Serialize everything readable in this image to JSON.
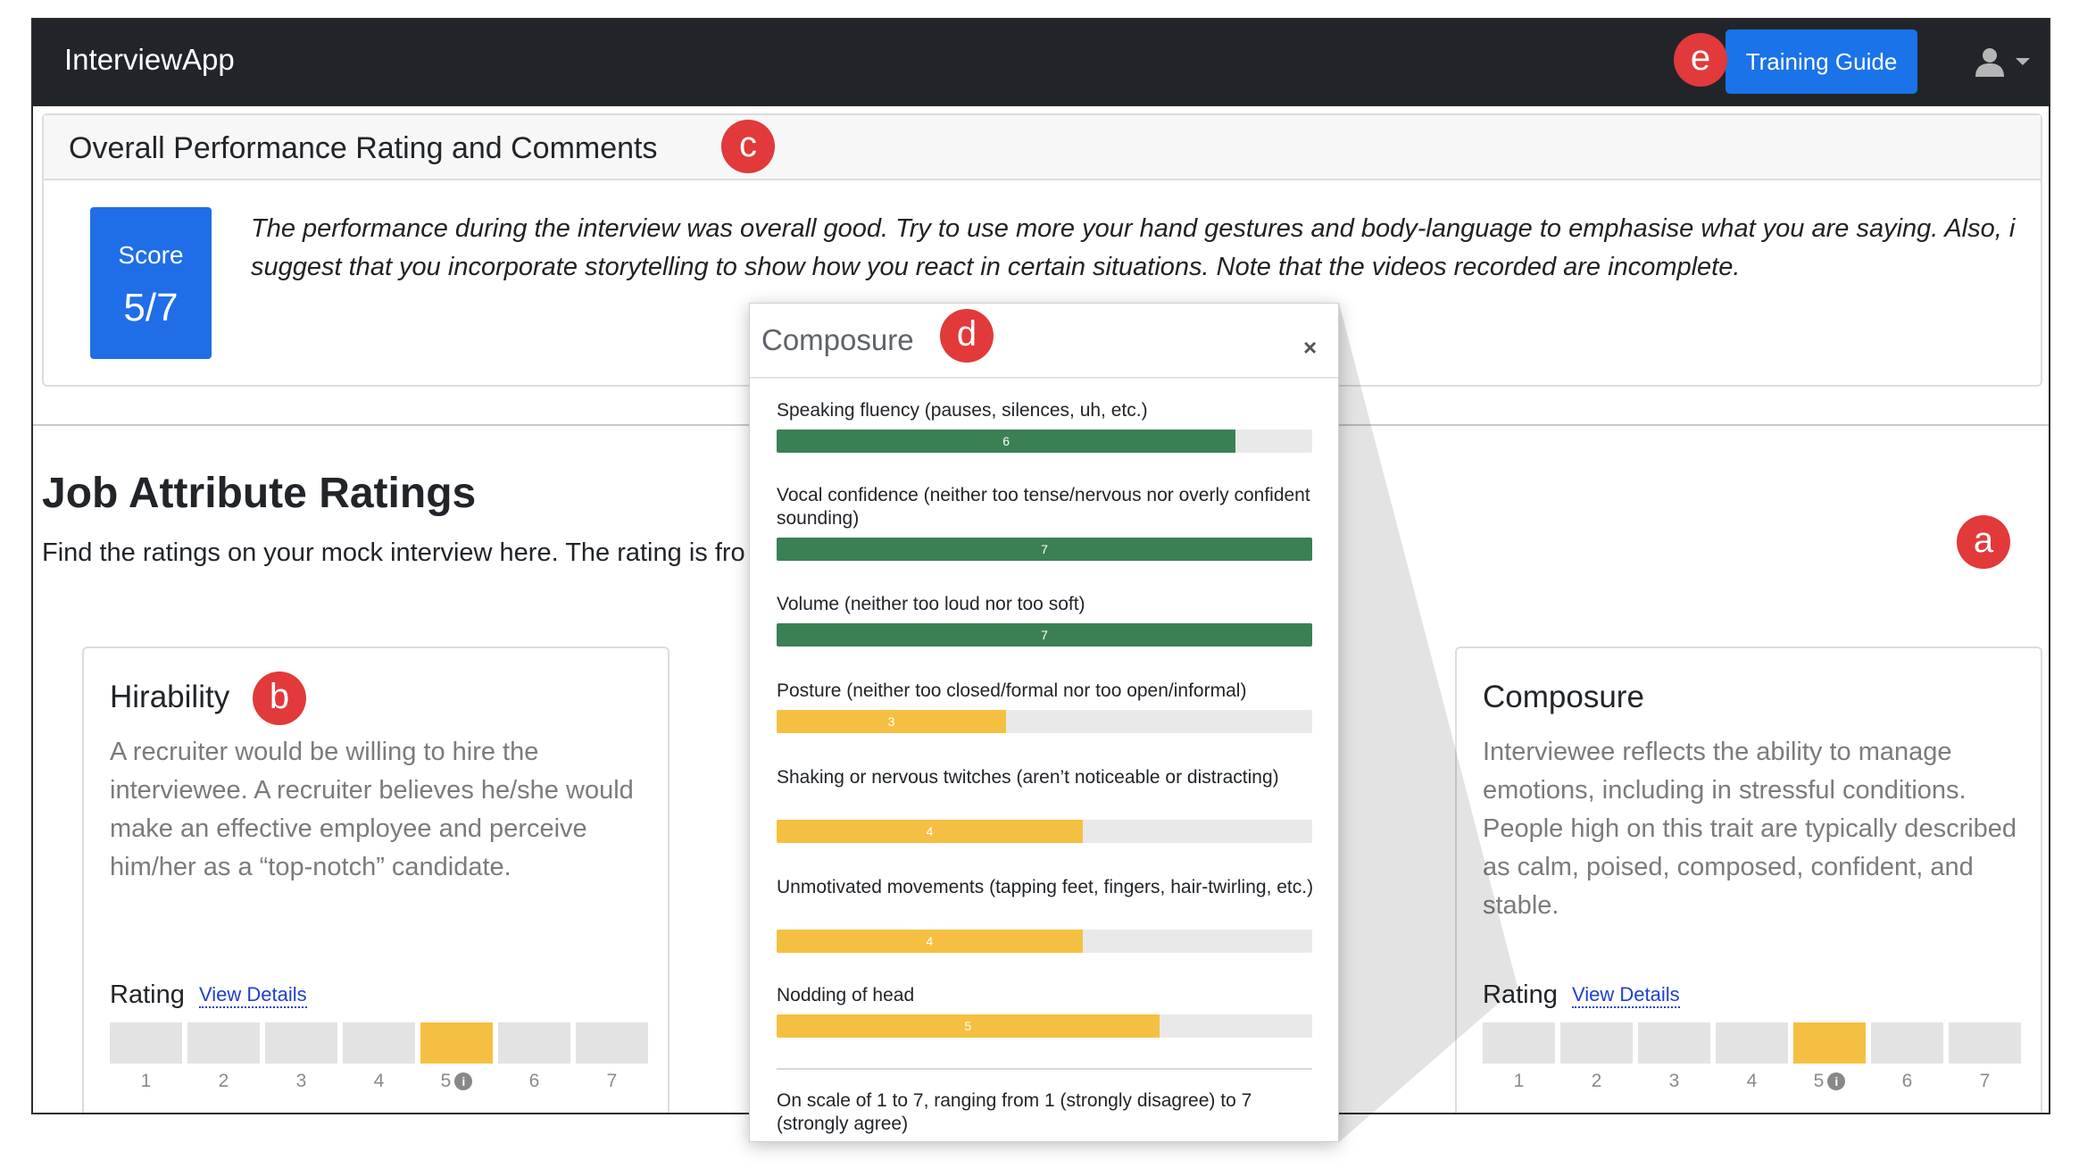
{
  "navbar": {
    "brand": "InterviewApp",
    "training_guide_label": "Training Guide",
    "user_icon": "user-icon"
  },
  "badges": {
    "a": "a",
    "b": "b",
    "c": "c",
    "d": "d",
    "e": "e"
  },
  "overall": {
    "title": "Overall Performance Rating and Comments",
    "score_label": "Score",
    "score_value": "5/7",
    "comment": "The performance during the interview was overall good. Try to use more your hand gestures and body-language to emphasise what you are saying. Also, i suggest that you incorporate storytelling to show how you react in certain situations. Note that the videos recorded are incomplete."
  },
  "job_attributes": {
    "title": "Job Attribute Ratings",
    "description": "Find the ratings on your mock interview here. The rating is fro",
    "rating_label": "Rating",
    "view_details_label": "View Details",
    "scale": [
      "1",
      "2",
      "3",
      "4",
      "5",
      "6",
      "7"
    ],
    "info_icon": "info-icon",
    "cards": [
      {
        "title": "Hirability",
        "description": "A recruiter would be willing to hire the interviewee. A recruiter believes he/she would make an effective employee and perceive him/her as a “top-notch” candidate.",
        "rating": 5
      },
      {
        "title": "Composure",
        "description": "Interviewee reflects the ability to manage emotions, including in stressful conditions. People high on this trait are typically described as calm, poised, composed, confident, and stable.",
        "rating": 5
      }
    ]
  },
  "popup": {
    "title": "Composure",
    "close_label": "×",
    "metrics": [
      {
        "label": "Speaking fluency (pauses, silences, uh, etc.)",
        "value": 6,
        "color": "#3b8054"
      },
      {
        "label": "Vocal confidence (neither too tense/nervous nor overly confident sounding)",
        "value": 7,
        "color": "#3b8054"
      },
      {
        "label": "Volume (neither too loud nor too soft)",
        "value": 7,
        "color": "#3b8054"
      },
      {
        "label": "Posture (neither too closed/formal nor too open/informal)",
        "value": 3,
        "color": "#f5c042"
      },
      {
        "label": "Shaking or nervous twitches (aren’t noticeable or distracting)",
        "value": 4,
        "color": "#f5c042"
      },
      {
        "label": "Unmotivated movements (tapping feet, fingers, hair-twirling, etc.)",
        "value": 4,
        "color": "#f5c042"
      },
      {
        "label": "Nodding of head",
        "value": 5,
        "color": "#f5c042"
      }
    ],
    "max_value": 7,
    "scale_note": "On scale of 1 to 7, ranging from 1 (strongly disagree) to 7 (strongly agree)"
  }
}
